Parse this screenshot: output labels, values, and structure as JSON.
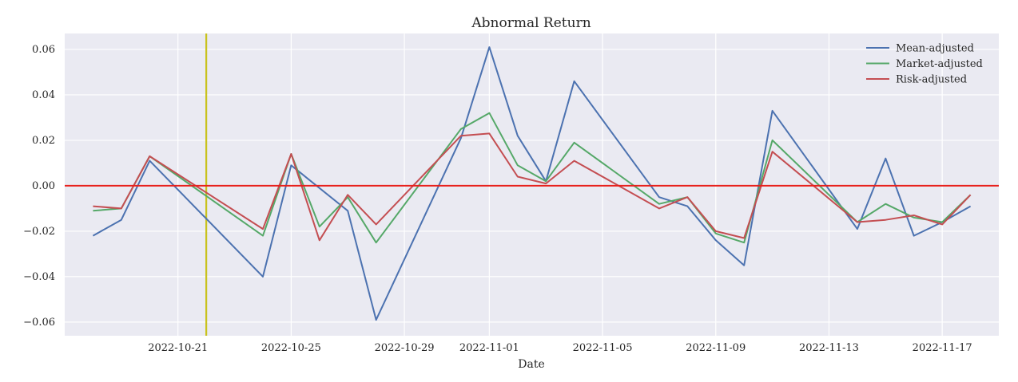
{
  "chart_data": {
    "type": "line",
    "title": "Abnormal Return",
    "xlabel": "Date",
    "ylabel": "",
    "x": [
      "2022-10-18",
      "2022-10-19",
      "2022-10-20",
      "2022-10-21",
      "2022-10-24",
      "2022-10-25",
      "2022-10-26",
      "2022-10-27",
      "2022-10-28",
      "2022-10-31",
      "2022-11-01",
      "2022-11-02",
      "2022-11-03",
      "2022-11-04",
      "2022-11-07",
      "2022-11-08",
      "2022-11-09",
      "2022-11-10",
      "2022-11-11",
      "2022-11-14",
      "2022-11-15",
      "2022-11-16",
      "2022-11-17",
      "2022-11-18"
    ],
    "series": [
      {
        "name": "Mean-adjusted",
        "color": "#4c72b0",
        "values": [
          -0.022,
          -0.015,
          0.011,
          null,
          -0.04,
          0.009,
          null,
          -0.011,
          -0.059,
          0.021,
          0.061,
          0.022,
          0.002,
          0.046,
          -0.005,
          -0.009,
          -0.024,
          -0.035,
          0.033,
          -0.019,
          0.012,
          -0.022,
          -0.016,
          -0.009
        ]
      },
      {
        "name": "Market-adjusted",
        "color": "#55a868",
        "values": [
          -0.011,
          -0.01,
          0.013,
          null,
          -0.022,
          0.014,
          -0.018,
          -0.005,
          -0.025,
          0.025,
          0.032,
          0.009,
          0.002,
          0.019,
          -0.008,
          -0.005,
          -0.021,
          -0.025,
          0.02,
          -0.016,
          -0.008,
          -0.014,
          -0.016,
          -0.004
        ]
      },
      {
        "name": "Risk-adjusted",
        "color": "#c44e52",
        "values": [
          -0.009,
          -0.01,
          0.013,
          null,
          -0.019,
          0.014,
          -0.024,
          -0.004,
          -0.017,
          0.022,
          0.023,
          0.004,
          0.001,
          0.011,
          -0.01,
          -0.005,
          -0.02,
          -0.023,
          0.015,
          -0.016,
          -0.015,
          -0.013,
          -0.017,
          -0.004
        ]
      }
    ],
    "xtick_labels": [
      "2022-10-21",
      "2022-10-25",
      "2022-10-29",
      "2022-11-01",
      "2022-11-05",
      "2022-11-09",
      "2022-11-13",
      "2022-11-17"
    ],
    "xlim": [
      "2022-10-17",
      "2022-11-19"
    ],
    "ylim": [
      -0.066,
      0.067
    ],
    "yticks": [
      -0.06,
      -0.04,
      -0.02,
      0.0,
      0.02,
      0.04,
      0.06
    ],
    "ytick_labels": [
      "−0.06",
      "−0.04",
      "−0.02",
      "0.00",
      "0.02",
      "0.04",
      "0.06"
    ],
    "hlines": [
      {
        "y": 0.0,
        "color": "#e8201c"
      }
    ],
    "vlines": [
      {
        "x": "2022-10-22",
        "color": "#c9c21e"
      }
    ],
    "grid": true,
    "legend_position": "top-right",
    "background": "#eaeaf2"
  }
}
